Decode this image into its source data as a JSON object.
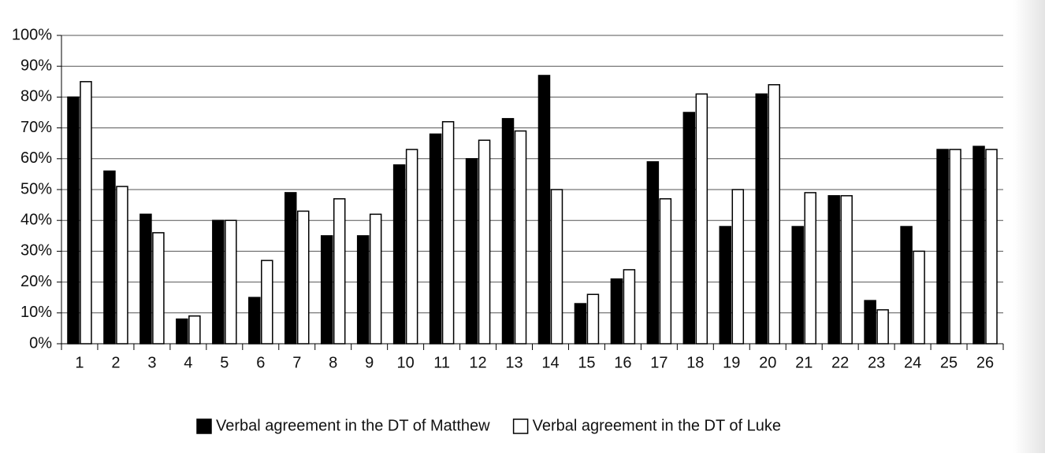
{
  "chart_data": {
    "type": "bar",
    "categories": [
      "1",
      "2",
      "3",
      "4",
      "5",
      "6",
      "7",
      "8",
      "9",
      "10",
      "11",
      "12",
      "13",
      "14",
      "15",
      "16",
      "17",
      "18",
      "19",
      "20",
      "21",
      "22",
      "23",
      "24",
      "25",
      "26"
    ],
    "series": [
      {
        "name": "Verbal agreement in the DT of Matthew",
        "color": "#000000",
        "values": [
          80,
          56,
          42,
          8,
          40,
          15,
          49,
          35,
          35,
          58,
          68,
          60,
          73,
          87,
          13,
          21,
          59,
          75,
          38,
          81,
          38,
          48,
          14,
          38,
          63,
          64
        ]
      },
      {
        "name": "Verbal agreement in the DT of Luke",
        "color": "#ffffff",
        "values": [
          85,
          51,
          36,
          9,
          40,
          27,
          43,
          47,
          42,
          63,
          72,
          66,
          69,
          50,
          16,
          24,
          47,
          81,
          50,
          84,
          49,
          48,
          11,
          30,
          63,
          63
        ]
      }
    ],
    "ylim": [
      0,
      100
    ],
    "yticks": [
      {
        "value": 0,
        "label": "0%"
      },
      {
        "value": 10,
        "label": "10%"
      },
      {
        "value": 20,
        "label": "20%"
      },
      {
        "value": 30,
        "label": "30%"
      },
      {
        "value": 40,
        "label": "40%"
      },
      {
        "value": 50,
        "label": "50%"
      },
      {
        "value": 60,
        "label": "60%"
      },
      {
        "value": 70,
        "label": "70%"
      },
      {
        "value": 80,
        "label": "80%"
      },
      {
        "value": 90,
        "label": "90%"
      },
      {
        "value": 100,
        "label": "100%"
      }
    ],
    "grid": true,
    "legend": "bottom"
  }
}
